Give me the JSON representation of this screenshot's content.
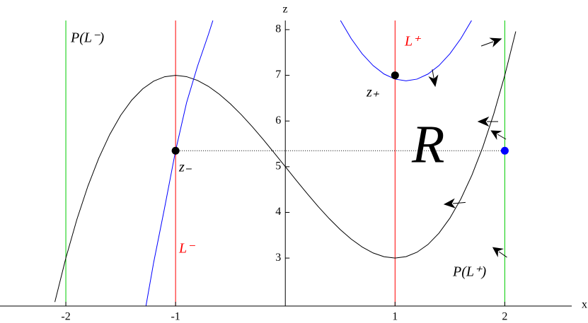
{
  "chart_data": {
    "type": "line",
    "x_label": "x",
    "y_label": "z",
    "xlim": [
      -2.6,
      2.61
    ],
    "ylim": [
      1.95,
      8.2
    ],
    "xticks": [
      -2,
      -1,
      1,
      2
    ],
    "yticks": [
      3,
      4,
      5,
      6,
      7,
      8
    ],
    "series": [
      {
        "color": "#000000",
        "x": [
          -2.1,
          -2.0,
          -1.9,
          -1.8,
          -1.7,
          -1.6,
          -1.5,
          -1.4,
          -1.3,
          -1.2,
          -1.1,
          -1.0,
          -0.9,
          -0.8,
          -0.7,
          -0.6,
          -0.5,
          -0.4,
          -0.3,
          -0.2,
          -0.1,
          0,
          0.1,
          0.2,
          0.3,
          0.4,
          0.5,
          0.6,
          0.7,
          0.8,
          0.9,
          1.0,
          1.1,
          1.2,
          1.3,
          1.4,
          1.5,
          1.6,
          1.7,
          1.8,
          1.9,
          2.0,
          2.1
        ],
        "values": [
          2.039,
          3,
          3.841,
          4.568,
          5.187,
          5.704,
          6.125,
          6.456,
          6.703,
          6.872,
          6.969,
          7,
          6.971,
          6.888,
          6.757,
          6.584,
          6.375,
          6.136,
          5.873,
          5.592,
          5.299,
          5,
          4.701,
          4.408,
          4.127,
          3.864,
          3.625,
          3.416,
          3.243,
          3.112,
          3.029,
          3,
          3.031,
          3.128,
          3.297,
          3.544,
          3.875,
          4.296,
          4.813,
          5.432,
          6.159,
          7,
          7.961
        ]
      },
      {
        "color": "#0000ff",
        "x": [
          -1.27,
          -1.2,
          -1.1,
          -1.0,
          -0.9,
          -0.8,
          -0.7,
          -0.66
        ],
        "values": [
          1.95,
          2.9,
          4.1,
          5.35,
          6.4,
          7.2,
          7.9,
          8.2
        ]
      },
      {
        "color": "#0000ff",
        "x": [
          0.5,
          0.6,
          0.7,
          0.8,
          0.9,
          1.0,
          1.1,
          1.2,
          1.3,
          1.4,
          1.5,
          1.6,
          1.7
        ],
        "values": [
          8.212,
          7.805,
          7.472,
          7.213,
          7.028,
          6.917,
          6.88,
          6.917,
          7.028,
          7.213,
          7.472,
          7.805,
          8.212
        ]
      }
    ],
    "vlines": [
      {
        "x": -2,
        "color": "#00cc00"
      },
      {
        "x": -1,
        "color": "#ff0000"
      },
      {
        "x": 1,
        "color": "#ff0000"
      },
      {
        "x": 2,
        "color": "#00cc00"
      }
    ],
    "points": [
      {
        "x": -1,
        "z": 5.35,
        "color": "#000000"
      },
      {
        "x": 1,
        "z": 7,
        "color": "#000000"
      },
      {
        "x": 2,
        "z": 5.35,
        "color": "#0000ff"
      }
    ],
    "dotted_line": {
      "x": [
        -1,
        2
      ],
      "z": 5.35
    },
    "annotations": [
      "P(L⁻)",
      "L⁻",
      "L⁺",
      "P(L⁺)",
      "z₋",
      "z₊",
      "R"
    ]
  }
}
